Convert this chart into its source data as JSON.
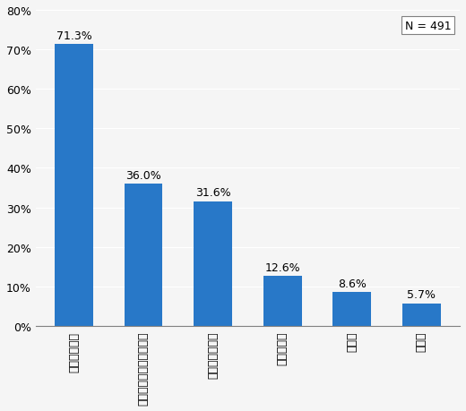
{
  "categories": [
    "株式投資信託",
    "外国で作られた投資信託",
    "公社債投資信託",
    "不動産投信",
    "ＥＴＦ",
    "無回答"
  ],
  "values": [
    71.3,
    36.0,
    31.6,
    12.6,
    8.6,
    5.7
  ],
  "bar_color": "#2878C8",
  "ylim": [
    0,
    80
  ],
  "yticks": [
    0,
    10,
    20,
    30,
    40,
    50,
    60,
    70,
    80
  ],
  "n_label": "N = 491",
  "background_color": "#f5f5f5",
  "label_fontsize": 9,
  "tick_fontsize": 9,
  "annotation_fontsize": 9
}
